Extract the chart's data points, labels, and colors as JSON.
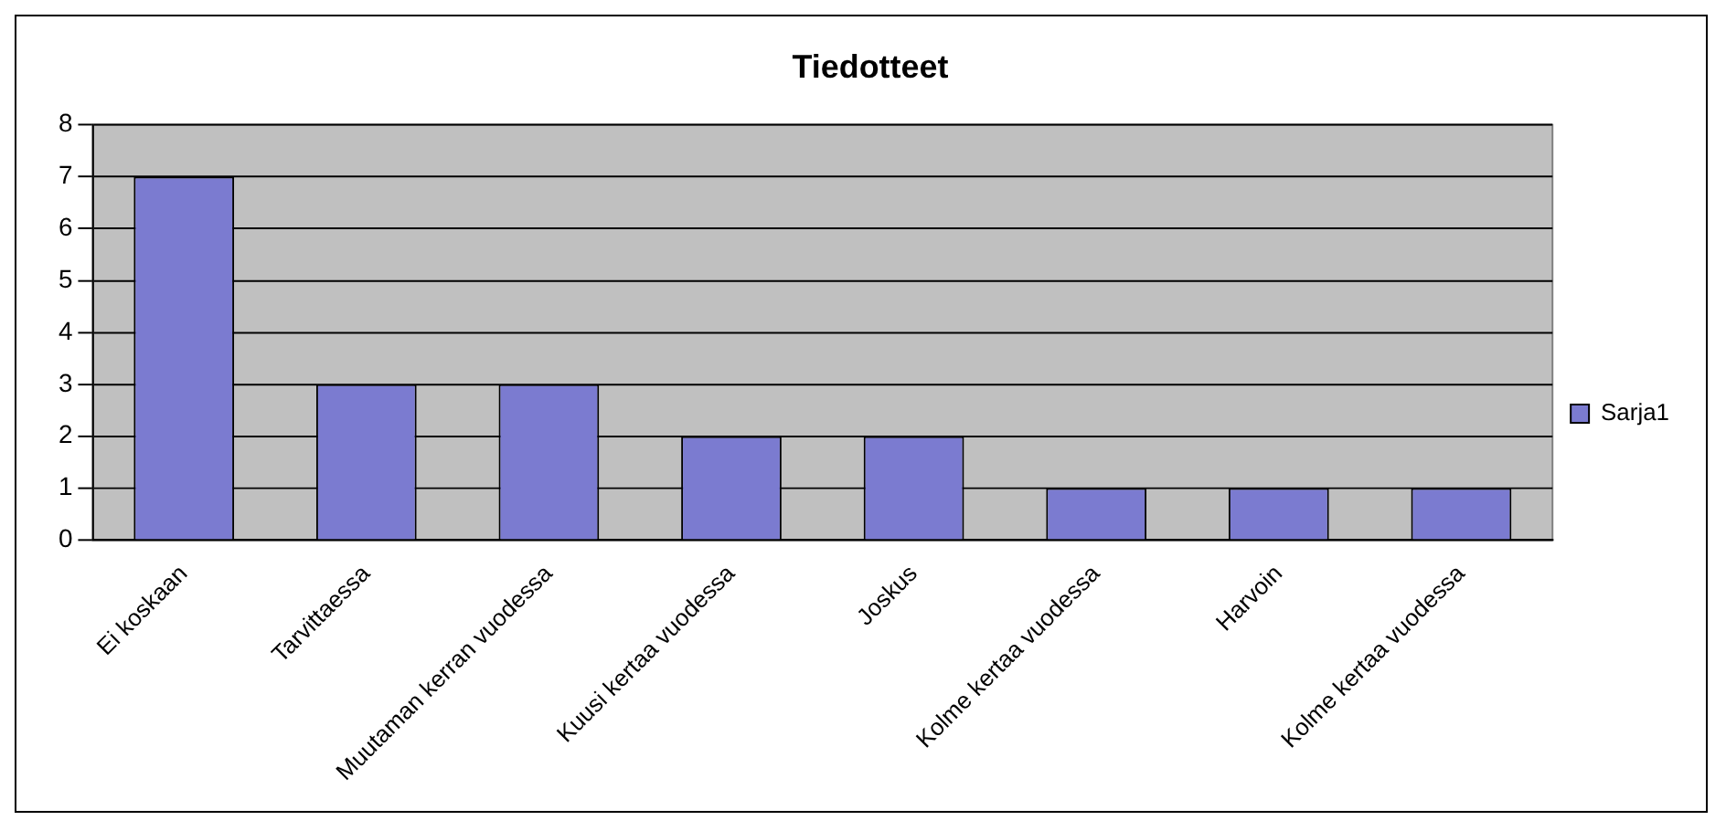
{
  "chart_data": {
    "type": "bar",
    "title": "Tiedotteet",
    "categories": [
      "Ei koskaan",
      "Tarvittaessa",
      "Muutaman kerran vuodessa",
      "Kuusi kertaa vuodessa",
      "Joskus",
      "Kolme kertaa vuodessa",
      "Harvoin",
      "Kolme kertaa vuodessa"
    ],
    "series": [
      {
        "name": "Sarja1",
        "color": "#7b7bd0",
        "values": [
          7,
          3,
          3,
          2,
          2,
          1,
          1,
          1
        ]
      }
    ],
    "ylim": [
      0,
      8
    ],
    "yticks": [
      0,
      1,
      2,
      3,
      4,
      5,
      6,
      7,
      8
    ],
    "grid": "y",
    "legend": "right"
  }
}
